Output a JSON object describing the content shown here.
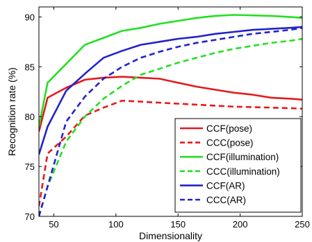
{
  "chart_data": {
    "type": "line",
    "title": "",
    "xlabel": "Dimensionality",
    "ylabel": "Recognition rate (%)",
    "xlim": [
      38,
      250
    ],
    "ylim": [
      70,
      91
    ],
    "x_ticks": [
      50,
      100,
      150,
      200,
      250
    ],
    "y_ticks": [
      70,
      75,
      80,
      85,
      90
    ],
    "x_tick_labels": [
      "50",
      "100",
      "150",
      "200",
      "250"
    ],
    "y_tick_labels": [
      "70",
      "75",
      "80",
      "85",
      "90"
    ],
    "grid": false,
    "legend_position": "bottom-right",
    "series": [
      {
        "name": "CCF(pose)",
        "color": "#e41a1c",
        "dash": "solid",
        "x": [
          38,
          45,
          60,
          75,
          90,
          105,
          120,
          135,
          150,
          165,
          180,
          195,
          210,
          225,
          240,
          250
        ],
        "y": [
          78.5,
          81.9,
          82.9,
          83.7,
          83.9,
          84.0,
          83.9,
          83.8,
          83.4,
          83.0,
          82.7,
          82.4,
          82.2,
          81.9,
          81.8,
          81.7
        ]
      },
      {
        "name": "CCC(pose)",
        "color": "#e41a1c",
        "dash": "dashed",
        "x": [
          38,
          45,
          60,
          75,
          90,
          105,
          120,
          135,
          150,
          165,
          180,
          195,
          210,
          225,
          240,
          250
        ],
        "y": [
          71.0,
          76.3,
          78.0,
          80.1,
          80.9,
          81.6,
          81.5,
          81.4,
          81.3,
          81.2,
          81.1,
          81.0,
          80.95,
          80.9,
          80.85,
          80.8
        ]
      },
      {
        "name": "CCF(illumination)",
        "color": "#22e022",
        "dash": "solid",
        "x": [
          38,
          45,
          60,
          75,
          90,
          105,
          120,
          135,
          150,
          165,
          180,
          195,
          210,
          225,
          240,
          250
        ],
        "y": [
          79.0,
          83.4,
          85.3,
          87.2,
          87.9,
          88.6,
          88.9,
          89.3,
          89.6,
          89.9,
          90.1,
          90.2,
          90.15,
          90.1,
          90.0,
          89.9
        ]
      },
      {
        "name": "CCC(illumination)",
        "color": "#22e022",
        "dash": "dashed",
        "x": [
          38,
          45,
          60,
          75,
          90,
          105,
          120,
          135,
          150,
          165,
          180,
          195,
          210,
          225,
          240,
          250
        ],
        "y": [
          70.0,
          73.0,
          77.5,
          80.0,
          81.8,
          83.1,
          84.2,
          84.8,
          85.4,
          85.9,
          86.4,
          86.8,
          87.1,
          87.4,
          87.6,
          87.8
        ]
      },
      {
        "name": "CCF(AR)",
        "color": "#2222cc",
        "dash": "solid",
        "x": [
          38,
          45,
          60,
          75,
          90,
          105,
          120,
          135,
          150,
          165,
          180,
          195,
          210,
          225,
          240,
          250
        ],
        "y": [
          76.2,
          79.0,
          82.6,
          84.3,
          85.9,
          86.6,
          87.2,
          87.5,
          87.8,
          88.0,
          88.3,
          88.5,
          88.7,
          88.8,
          88.9,
          89.0
        ]
      },
      {
        "name": "CCC(AR)",
        "color": "#2222cc",
        "dash": "dashed",
        "x": [
          38,
          45,
          60,
          75,
          90,
          105,
          120,
          135,
          150,
          165,
          180,
          195,
          210,
          225,
          240,
          250
        ],
        "y": [
          70.0,
          73.0,
          79.5,
          82.0,
          83.8,
          85.0,
          85.9,
          86.5,
          87.0,
          87.4,
          87.7,
          88.0,
          88.3,
          88.5,
          88.7,
          88.9
        ]
      }
    ]
  }
}
